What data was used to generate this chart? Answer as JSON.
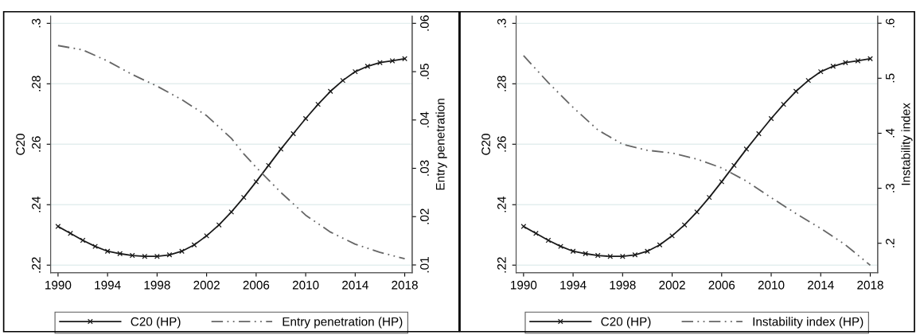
{
  "chart_data": [
    {
      "type": "line",
      "x": [
        1990,
        1991,
        1992,
        1993,
        1994,
        1995,
        1996,
        1997,
        1998,
        1999,
        2000,
        2001,
        2002,
        2003,
        2004,
        2005,
        2006,
        2007,
        2008,
        2009,
        2010,
        2011,
        2012,
        2013,
        2014,
        2015,
        2016,
        2017,
        2018
      ],
      "ylabel": "C20",
      "y2label": "Entry penetration",
      "series": [
        {
          "name": "C20 (HP)",
          "color": "#1a1a1a",
          "marker": "cross",
          "line_style": "solid",
          "values": [
            0.2328,
            0.2305,
            0.2282,
            0.2262,
            0.2246,
            0.2238,
            0.2232,
            0.2229,
            0.2229,
            0.2234,
            0.2246,
            0.2267,
            0.2297,
            0.2333,
            0.2376,
            0.2424,
            0.2476,
            0.253,
            0.2584,
            0.2635,
            0.2685,
            0.2732,
            0.2775,
            0.2811,
            0.284,
            0.2858,
            0.287,
            0.2876,
            0.2883
          ]
        },
        {
          "name": "Entry penetration (HP)",
          "color": "#666666",
          "marker": "none",
          "line_style": "dashed",
          "axis": "y2",
          "x": [
            1990,
            1992,
            1994,
            1996,
            1998,
            2000,
            2002,
            2004,
            2005,
            2006,
            2007,
            2008,
            2010,
            2012,
            2014,
            2016,
            2018
          ],
          "values": [
            0.0554,
            0.0545,
            0.0522,
            0.0494,
            0.047,
            0.0442,
            0.0409,
            0.0362,
            0.033,
            0.0302,
            0.0276,
            0.025,
            0.0203,
            0.0168,
            0.0143,
            0.0126,
            0.0113
          ]
        }
      ],
      "xlim": [
        1989.4,
        2018.6
      ],
      "xticks": [
        1990,
        1994,
        1998,
        2002,
        2006,
        2010,
        2014,
        2018
      ],
      "ylim": [
        0.2175,
        0.3024
      ],
      "yticks": [
        {
          "value": 0.22,
          "label": ".22"
        },
        {
          "value": 0.24,
          "label": ".24"
        },
        {
          "value": 0.26,
          "label": ".26"
        },
        {
          "value": 0.28,
          "label": ".28"
        },
        {
          "value": 0.3,
          "label": ".3"
        }
      ],
      "y2lim": [
        0.0084,
        0.0615
      ],
      "y2ticks": [
        {
          "value": 0.01,
          "label": ".01"
        },
        {
          "value": 0.02,
          "label": ".02"
        },
        {
          "value": 0.03,
          "label": ".03"
        },
        {
          "value": 0.04,
          "label": ".04"
        },
        {
          "value": 0.05,
          "label": ".05"
        },
        {
          "value": 0.06,
          "label": ".06"
        }
      ],
      "grid": "y",
      "legend": "bottom"
    },
    {
      "type": "line",
      "x": [
        1990,
        1991,
        1992,
        1993,
        1994,
        1995,
        1996,
        1997,
        1998,
        1999,
        2000,
        2001,
        2002,
        2003,
        2004,
        2005,
        2006,
        2007,
        2008,
        2009,
        2010,
        2011,
        2012,
        2013,
        2014,
        2015,
        2016,
        2017,
        2018
      ],
      "ylabel": "C20",
      "y2label": "Instability index",
      "series": [
        {
          "name": "C20 (HP)",
          "color": "#1a1a1a",
          "marker": "cross",
          "line_style": "solid",
          "values": [
            0.2328,
            0.2305,
            0.2282,
            0.2262,
            0.2246,
            0.2238,
            0.2232,
            0.2229,
            0.2229,
            0.2234,
            0.2246,
            0.2267,
            0.2297,
            0.2333,
            0.2376,
            0.2424,
            0.2476,
            0.253,
            0.2584,
            0.2635,
            0.2685,
            0.2732,
            0.2775,
            0.2811,
            0.284,
            0.2858,
            0.287,
            0.2876,
            0.2883
          ]
        },
        {
          "name": "Instability index (HP)",
          "color": "#666666",
          "marker": "none",
          "line_style": "dashed",
          "axis": "y2",
          "x": [
            1990,
            1992,
            1994,
            1996,
            1998,
            2000,
            2002,
            2004,
            2006,
            2008,
            2010,
            2012,
            2014,
            2016,
            2018
          ],
          "values": [
            0.541,
            0.492,
            0.447,
            0.406,
            0.38,
            0.369,
            0.364,
            0.353,
            0.337,
            0.313,
            0.283,
            0.254,
            0.227,
            0.197,
            0.16
          ]
        }
      ],
      "xlim": [
        1989.4,
        2018.6
      ],
      "xticks": [
        1990,
        1994,
        1998,
        2002,
        2006,
        2010,
        2014,
        2018
      ],
      "ylim": [
        0.2175,
        0.3024
      ],
      "yticks": [
        {
          "value": 0.22,
          "label": ".22"
        },
        {
          "value": 0.24,
          "label": ".24"
        },
        {
          "value": 0.26,
          "label": ".26"
        },
        {
          "value": 0.28,
          "label": ".28"
        },
        {
          "value": 0.3,
          "label": ".3"
        }
      ],
      "y2lim": [
        0.1465,
        0.613
      ],
      "y2ticks": [
        {
          "value": 0.2,
          "label": ".2"
        },
        {
          "value": 0.3,
          "label": ".3"
        },
        {
          "value": 0.4,
          "label": ".4"
        },
        {
          "value": 0.5,
          "label": ".5"
        },
        {
          "value": 0.6,
          "label": ".6"
        }
      ],
      "grid": "y",
      "legend": "bottom"
    }
  ]
}
